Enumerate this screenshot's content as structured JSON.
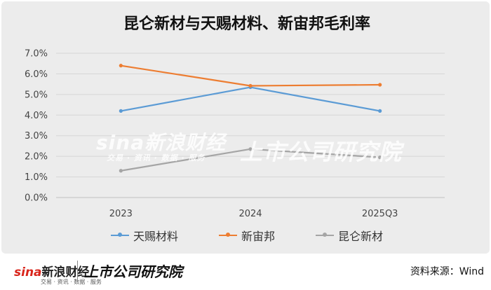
{
  "chart_data": {
    "type": "line",
    "title": "昆仑新材与天赐材料、新宙邦毛利率",
    "categories": [
      "2023",
      "2024",
      "2025Q3"
    ],
    "ylim": [
      0,
      7
    ],
    "yticks": [
      "0.0%",
      "1.0%",
      "2.0%",
      "3.0%",
      "4.0%",
      "5.0%",
      "6.0%",
      "7.0%"
    ],
    "grid": true,
    "legend_position": "bottom",
    "series": [
      {
        "name": "天赐材料",
        "values": [
          4.2,
          5.35,
          4.2
        ],
        "color": "#5b9bd5"
      },
      {
        "name": "新宙邦",
        "values": [
          6.4,
          5.42,
          5.47
        ],
        "color": "#ed7d31"
      },
      {
        "name": "昆仑新材",
        "values": [
          1.3,
          2.35,
          1.95
        ],
        "color": "#a5a5a5"
      }
    ]
  },
  "watermark": {
    "brand": "sina新浪财经",
    "brand_sub": "交易 · 资讯 · 数据 · 服务",
    "institute": "上市公司研究院"
  },
  "footer": {
    "logo_sina": "sina",
    "logo_cn": "新浪财经",
    "logo_sub": "交易 · 资讯 · 数据 · 服务",
    "institute": "上市公司研究院",
    "source": "资料来源：Wind"
  }
}
